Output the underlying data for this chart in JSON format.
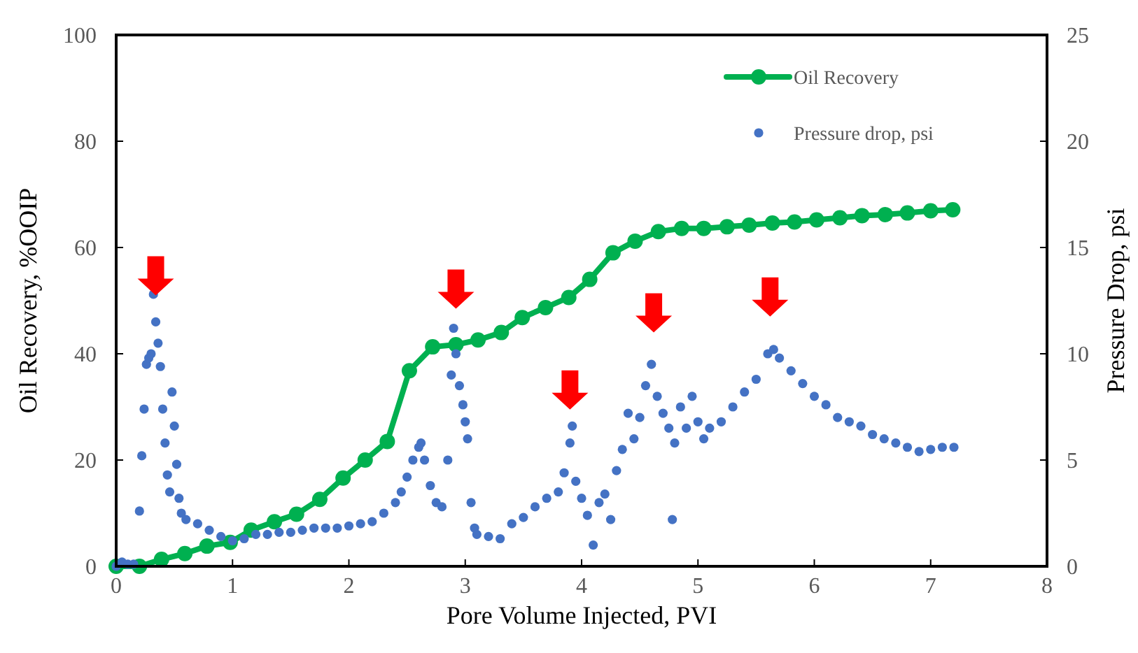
{
  "chart_data": {
    "type": "line",
    "xlabel": "Pore Volume Injected, PVI",
    "ylabel": "Oil Recovery, %OOIP",
    "y2label": "Pressure Drop, psi",
    "xlim": [
      0,
      8
    ],
    "xticks": [
      0,
      1,
      2,
      3,
      4,
      5,
      6,
      7,
      8
    ],
    "ylim": [
      0,
      100
    ],
    "yticks": [
      0,
      20,
      40,
      60,
      80,
      100
    ],
    "y2lim": [
      0,
      25
    ],
    "y2ticks": [
      0,
      5,
      10,
      15,
      20,
      25
    ],
    "legend": "top right",
    "grid": false,
    "series": [
      {
        "name": "Oil Recovery",
        "color": "#00b050",
        "marker": "circle",
        "x": [
          0,
          0.2,
          0.39,
          0.59,
          0.78,
          0.98,
          1.16,
          1.36,
          1.55,
          1.75,
          1.95,
          2.14,
          2.33,
          2.52,
          2.72,
          2.92,
          3.11,
          3.31,
          3.49,
          3.69,
          3.89,
          4.07,
          4.27,
          4.46,
          4.66,
          4.86,
          5.05,
          5.25,
          5.44,
          5.64,
          5.83,
          6.02,
          6.22,
          6.41,
          6.61,
          6.8,
          7.0,
          7.19
        ],
        "values": [
          0,
          0,
          1.3,
          2.4,
          3.8,
          4.5,
          6.8,
          8.4,
          9.8,
          12.6,
          16.6,
          20,
          23.5,
          36.8,
          41.3,
          41.7,
          42.6,
          44,
          46.8,
          48.7,
          50.6,
          54,
          59,
          61.2,
          63,
          63.6,
          63.6,
          63.9,
          64.2,
          64.6,
          64.8,
          65.2,
          65.6,
          66,
          66.2,
          66.5,
          66.9,
          67.1
        ]
      },
      {
        "name": "Pressure drop, psi",
        "type": "scatter",
        "axis": "y2",
        "color": "#4472c4",
        "marker": "circle",
        "x": [
          0,
          0.05,
          0.1,
          0.15,
          0.2,
          0.22,
          0.24,
          0.26,
          0.28,
          0.3,
          0.32,
          0.34,
          0.36,
          0.38,
          0.4,
          0.42,
          0.44,
          0.46,
          0.48,
          0.5,
          0.52,
          0.54,
          0.56,
          0.6,
          0.7,
          0.8,
          0.9,
          1.0,
          1.1,
          1.2,
          1.3,
          1.4,
          1.5,
          1.6,
          1.7,
          1.8,
          1.9,
          2.0,
          2.1,
          2.2,
          2.3,
          2.4,
          2.45,
          2.5,
          2.55,
          2.6,
          2.62,
          2.65,
          2.7,
          2.75,
          2.8,
          2.85,
          2.88,
          2.9,
          2.92,
          2.95,
          2.98,
          3.0,
          3.02,
          3.05,
          3.08,
          3.1,
          3.2,
          3.3,
          3.4,
          3.5,
          3.6,
          3.7,
          3.8,
          3.85,
          3.9,
          3.92,
          3.95,
          4.0,
          4.05,
          4.1,
          4.15,
          4.2,
          4.25,
          4.3,
          4.35,
          4.4,
          4.45,
          4.5,
          4.55,
          4.6,
          4.65,
          4.7,
          4.75,
          4.78,
          4.8,
          4.85,
          4.9,
          4.95,
          5.0,
          5.05,
          5.1,
          5.2,
          5.3,
          5.4,
          5.5,
          5.6,
          5.65,
          5.7,
          5.8,
          5.9,
          6.0,
          6.1,
          6.2,
          6.3,
          6.4,
          6.5,
          6.6,
          6.7,
          6.8,
          6.9,
          7.0,
          7.1,
          7.2
        ],
        "values": [
          0,
          0.2,
          0.1,
          0.1,
          2.6,
          5.2,
          7.4,
          9.5,
          9.8,
          10,
          12.8,
          11.5,
          10.5,
          9.4,
          7.4,
          5.8,
          4.3,
          3.5,
          8.2,
          6.6,
          4.8,
          3.2,
          2.5,
          2.2,
          2,
          1.7,
          1.4,
          1.2,
          1.3,
          1.5,
          1.5,
          1.6,
          1.6,
          1.7,
          1.8,
          1.8,
          1.8,
          1.9,
          2,
          2.1,
          2.5,
          3,
          3.5,
          4.2,
          5,
          5.6,
          5.8,
          5,
          3.8,
          3,
          2.8,
          5,
          9,
          11.2,
          10,
          8.5,
          7.6,
          6.8,
          6,
          3,
          1.8,
          1.5,
          1.4,
          1.3,
          2,
          2.3,
          2.8,
          3.2,
          3.5,
          4.4,
          5.8,
          6.6,
          4,
          3.2,
          2.4,
          1,
          3,
          3.4,
          2.2,
          4.5,
          5.5,
          7.2,
          6,
          7,
          8.5,
          9.5,
          8,
          7.2,
          6.5,
          2.2,
          5.8,
          7.5,
          6.5,
          8,
          6.8,
          6,
          6.5,
          6.8,
          7.5,
          8.2,
          8.8,
          10,
          10.2,
          9.8,
          9.2,
          8.6,
          8,
          7.6,
          7,
          6.8,
          6.6,
          6.2,
          6,
          5.8,
          5.6,
          5.4,
          5.5,
          5.6,
          5.6
        ]
      }
    ]
  }
}
